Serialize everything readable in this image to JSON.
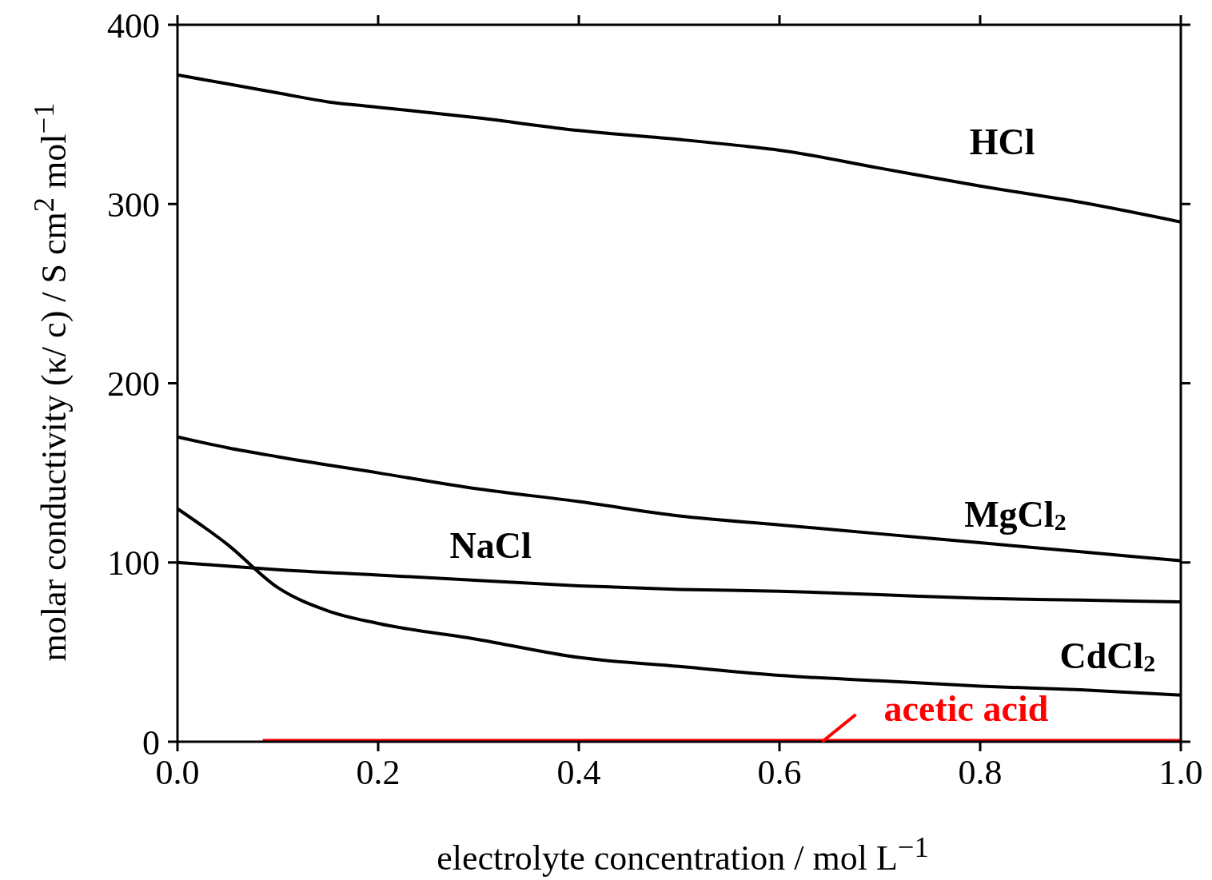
{
  "chart_data": {
    "type": "line",
    "xlabel": "electrolyte concentration / mol L$^{−1}$",
    "ylabel": "molar conductivity  (κ/ c) / S cm$^{2}$ mol$^{−1}$",
    "xlim": [
      0,
      1
    ],
    "ylim": [
      0,
      400
    ],
    "xticks": [
      {
        "value": 0,
        "label": "0.0"
      },
      {
        "value": 0.2,
        "label": "0.2"
      },
      {
        "value": 0.4,
        "label": "0.4"
      },
      {
        "value": 0.6,
        "label": "0.6"
      },
      {
        "value": 0.8,
        "label": "0.8"
      },
      {
        "value": 1,
        "label": "1.0"
      }
    ],
    "yticks": [
      0,
      100,
      200,
      300,
      400
    ],
    "series": [
      {
        "name": "HCl",
        "color": "#000000",
        "x": [
          0,
          0.1,
          0.15,
          0.2,
          0.3,
          0.4,
          0.5,
          0.57,
          0.6,
          0.7,
          0.8,
          0.9,
          1.0
        ],
        "values": [
          372,
          362,
          357,
          354,
          348,
          341,
          336,
          332,
          330,
          320,
          310,
          301,
          290
        ]
      },
      {
        "name": "MgCl$_{2}$",
        "color": "#000000",
        "x": [
          0,
          0.05,
          0.1,
          0.2,
          0.3,
          0.4,
          0.5,
          0.6,
          0.7,
          0.8,
          0.9,
          1.0
        ],
        "values": [
          170,
          164,
          159,
          150,
          141,
          134,
          126,
          121,
          116,
          111,
          106,
          101
        ]
      },
      {
        "name": "NaCl",
        "color": "#000000",
        "x": [
          0,
          0.05,
          0.1,
          0.2,
          0.3,
          0.4,
          0.5,
          0.6,
          0.7,
          0.8,
          0.9,
          1.0
        ],
        "values": [
          100,
          98,
          96,
          93,
          90,
          87,
          85,
          84,
          82,
          80,
          79,
          78
        ]
      },
      {
        "name": "CdCl$_{2}$",
        "color": "#000000",
        "x": [
          0,
          0.05,
          0.1,
          0.15,
          0.2,
          0.3,
          0.4,
          0.5,
          0.6,
          0.7,
          0.8,
          0.9,
          1.0
        ],
        "values": [
          130,
          110,
          86,
          73,
          66,
          57,
          47,
          42,
          37,
          34,
          31,
          29,
          26
        ]
      },
      {
        "name": "acetic acid",
        "color": "#ff0000",
        "x": [
          0.085,
          0.3,
          0.6,
          1.0
        ],
        "values": [
          0,
          0,
          0,
          0
        ]
      }
    ]
  }
}
